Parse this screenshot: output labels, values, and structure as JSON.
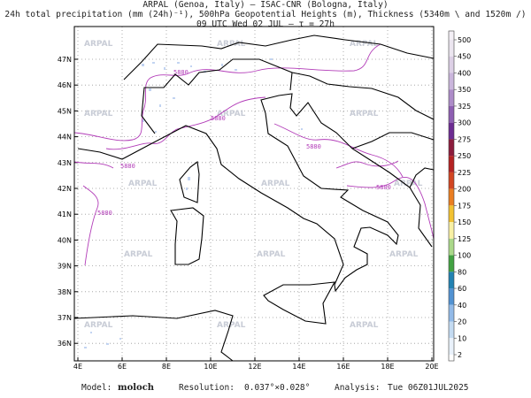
{
  "header": {
    "line1": "ARPAL (Genoa, Italy)  –  ISAC-CNR (Bologna, Italy)",
    "line2": "24h total precipitation (mm (24h)⁻¹), 500hPa Geopotential Heights (m), Thickness (5340m \\ and 1520m /)",
    "line3": "09 UTC Wed 02 JUL  –  τ = 27h"
  },
  "map": {
    "lon_labels": [
      "4E",
      "6E",
      "8E",
      "10E",
      "12E",
      "14E",
      "16E",
      "18E",
      "20E"
    ],
    "lat_labels": [
      "47N",
      "46N",
      "45N",
      "44N",
      "43N",
      "42N",
      "41N",
      "40N",
      "39N",
      "38N",
      "37N",
      "36N"
    ],
    "watermark": "ARPAL",
    "contour_label": "5880"
  },
  "colorbar": {
    "levels": [
      500,
      450,
      400,
      350,
      325,
      300,
      275,
      250,
      225,
      200,
      175,
      150,
      125,
      100,
      80,
      60,
      40,
      20,
      10,
      2
    ],
    "colors": [
      "#ece6f0",
      "#ddd0e6",
      "#cab6dc",
      "#ad8cc8",
      "#8e5fb2",
      "#6c2c92",
      "#8c1c3c",
      "#b42222",
      "#d24622",
      "#ea7e22",
      "#f2c232",
      "#f8f0a4",
      "#aad88a",
      "#42a242",
      "#2282b2",
      "#5292d2",
      "#92bae8",
      "#c4dbf2",
      "#eaf2fb"
    ]
  },
  "footer": {
    "model_label": "Model:",
    "model": "moloch",
    "resolution_label": "Resolution:",
    "resolution": "0.037°×0.028°",
    "analysis_label": "Analysis:",
    "analysis": "Tue 06Z01JUL2025"
  }
}
